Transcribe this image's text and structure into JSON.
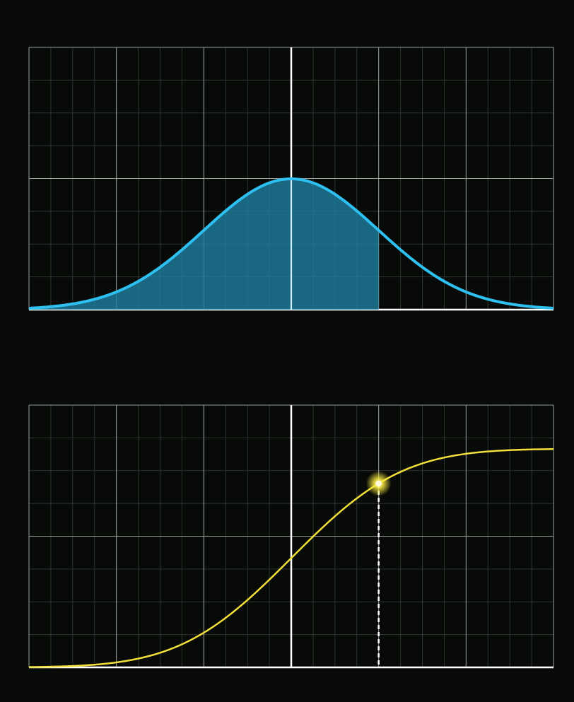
{
  "chart_data": [
    {
      "type": "area",
      "title": "",
      "xlabel": "",
      "ylabel": "",
      "xlim": [
        -3,
        3
      ],
      "ylim": [
        0,
        0.8
      ],
      "grid": true,
      "series": [
        {
          "function": "normal-pdf",
          "mean": 0,
          "sd": 1,
          "color": "#2ec0f0",
          "shaded_from": -3,
          "shaded_to": 1,
          "fill_color": "#1e7d9e"
        }
      ]
    },
    {
      "type": "line",
      "title": "",
      "xlabel": "",
      "ylabel": "",
      "xlim": [
        -3,
        3
      ],
      "ylim": [
        0,
        1.2
      ],
      "grid": true,
      "series": [
        {
          "function": "normal-cdf",
          "mean": 0,
          "sd": 1,
          "color": "#f2df3a"
        }
      ],
      "highlight": {
        "x": 1,
        "y": 0.841,
        "color": "#ffee40"
      }
    }
  ],
  "colors": {
    "background": "#070a07",
    "grid_major": "#9a9f9a",
    "grid_minor": "#2f3530",
    "axis": "#ffffff"
  }
}
